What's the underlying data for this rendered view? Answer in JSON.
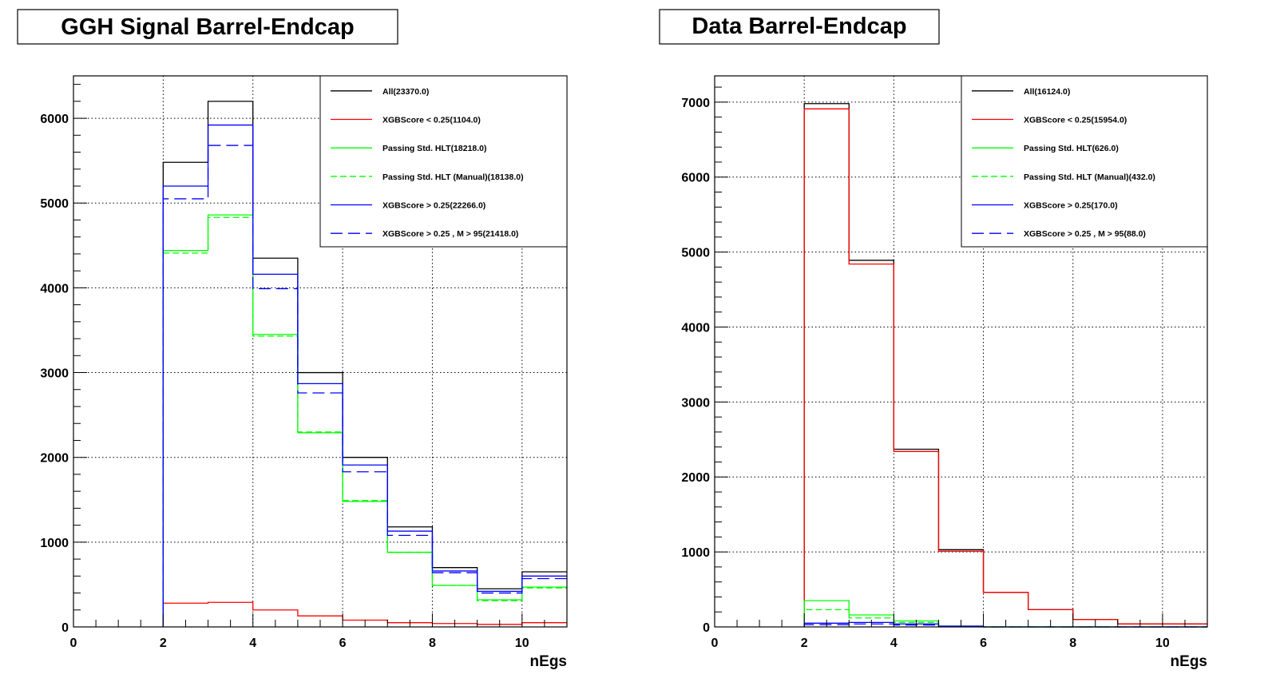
{
  "chart_data": [
    {
      "type": "step-histogram",
      "title": "GGH Signal Barrel-Endcap",
      "xlabel": "nEgs",
      "ylabel": "",
      "xlim": [
        0,
        11
      ],
      "ylim": [
        0,
        6500
      ],
      "xticks": [
        0,
        2,
        4,
        6,
        8,
        10
      ],
      "yticks": [
        0,
        1000,
        2000,
        3000,
        4000,
        5000,
        6000
      ],
      "grid": true,
      "legend_position": "top-right",
      "bin_edges": [
        2,
        3,
        4,
        5,
        6,
        7,
        8,
        9,
        10,
        11
      ],
      "series": [
        {
          "name": "All(23370.0)",
          "color": "#000000",
          "dash": "solid",
          "values": [
            5480,
            6200,
            4350,
            3000,
            2000,
            1180,
            700,
            450,
            650
          ]
        },
        {
          "name": "XGBScore < 0.25(1104.0)",
          "color": "#ff0000",
          "dash": "solid",
          "values": [
            280,
            290,
            200,
            130,
            80,
            50,
            40,
            30,
            50
          ]
        },
        {
          "name": "Passing Std. HLT(18218.0)",
          "color": "#00ff00",
          "dash": "solid",
          "values": [
            4440,
            4860,
            3450,
            2290,
            1480,
            880,
            490,
            320,
            470
          ]
        },
        {
          "name": "Passing Std. HLT (Manual)(18138.0)",
          "color": "#00ff00",
          "dash": "dash",
          "values": [
            4410,
            4830,
            3430,
            2300,
            1490,
            880,
            490,
            310,
            460
          ]
        },
        {
          "name": "XGBScore > 0.25(22266.0)",
          "color": "#0000ff",
          "dash": "solid",
          "values": [
            5200,
            5920,
            4160,
            2870,
            1910,
            1130,
            660,
            420,
            600
          ]
        },
        {
          "name": "XGBScore > 0.25 , M > 95(21418.0)",
          "color": "#0000ff",
          "dash": "longdash",
          "values": [
            5050,
            5680,
            3990,
            2760,
            1830,
            1080,
            640,
            400,
            570
          ]
        }
      ]
    },
    {
      "type": "step-histogram",
      "title": "Data Barrel-Endcap",
      "xlabel": "nEgs",
      "ylabel": "",
      "xlim": [
        0,
        11
      ],
      "ylim": [
        0,
        7350
      ],
      "xticks": [
        0,
        2,
        4,
        6,
        8,
        10
      ],
      "yticks": [
        0,
        1000,
        2000,
        3000,
        4000,
        5000,
        6000,
        7000
      ],
      "grid": true,
      "legend_position": "top-right",
      "bin_edges": [
        2,
        3,
        4,
        5,
        6,
        7,
        8,
        9,
        10,
        11
      ],
      "series": [
        {
          "name": "All(16124.0)",
          "color": "#000000",
          "dash": "solid",
          "values": [
            6980,
            4890,
            2370,
            1030,
            460,
            230,
            100,
            40,
            40
          ]
        },
        {
          "name": "XGBScore < 0.25(15954.0)",
          "color": "#ff0000",
          "dash": "solid",
          "values": [
            6910,
            4840,
            2340,
            1010,
            460,
            230,
            100,
            40,
            40
          ]
        },
        {
          "name": "Passing Std. HLT(626.0)",
          "color": "#00ff00",
          "dash": "solid",
          "values": [
            350,
            160,
            80,
            10,
            0,
            0,
            0,
            0,
            0
          ]
        },
        {
          "name": "Passing Std. HLT (Manual)(432.0)",
          "color": "#00ff00",
          "dash": "dash",
          "values": [
            230,
            120,
            60,
            5,
            0,
            0,
            0,
            0,
            0
          ]
        },
        {
          "name": "XGBScore > 0.25(170.0)",
          "color": "#0000ff",
          "dash": "solid",
          "values": [
            50,
            60,
            40,
            10,
            0,
            0,
            0,
            0,
            0
          ]
        },
        {
          "name": "XGBScore > 0.25 , M > 95(88.0)",
          "color": "#0000ff",
          "dash": "longdash",
          "values": [
            30,
            40,
            25,
            5,
            0,
            0,
            0,
            0,
            0
          ]
        }
      ]
    }
  ]
}
